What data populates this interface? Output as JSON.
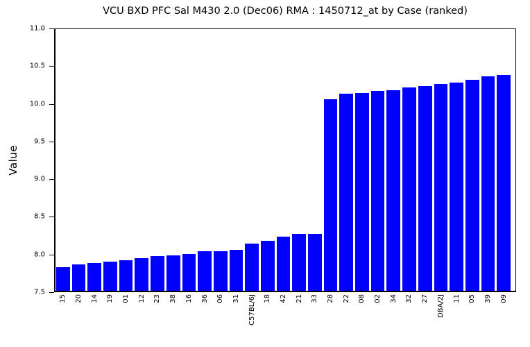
{
  "chart_data": {
    "type": "bar",
    "title": "VCU BXD PFC Sal M430 2.0 (Dec06) RMA : 1450712_at by Case (ranked)",
    "xlabel": "",
    "ylabel": "Value",
    "ylim": [
      7.5,
      11.0
    ],
    "yticks": [
      11.0,
      10.5,
      10.0,
      9.5,
      9.0,
      8.5,
      8.0,
      7.5
    ],
    "ytick_labels": [
      "11.0",
      "10.5",
      "10.0",
      "9.5",
      "9.0",
      "8.5",
      "8.0",
      "7.5"
    ],
    "grid": false,
    "legend": "none",
    "bar_color": "#0000ff",
    "frame_color": "#000000",
    "background_color": "#ffffff",
    "categories": [
      "15",
      "20",
      "14",
      "19",
      "01",
      "12",
      "23",
      "38",
      "16",
      "36",
      "06",
      "31",
      "C57BL/6J",
      "18",
      "42",
      "21",
      "33",
      "28",
      "22",
      "08",
      "02",
      "34",
      "32",
      "27",
      "DBA/2J",
      "11",
      "05",
      "39",
      "09"
    ],
    "values": [
      7.82,
      7.85,
      7.87,
      7.89,
      7.91,
      7.94,
      7.96,
      7.97,
      7.99,
      8.03,
      8.03,
      8.05,
      8.13,
      8.17,
      8.22,
      8.26,
      8.26,
      10.06,
      10.14,
      10.15,
      10.17,
      10.18,
      10.22,
      10.24,
      10.27,
      10.29,
      10.32,
      10.37,
      10.39
    ]
  }
}
